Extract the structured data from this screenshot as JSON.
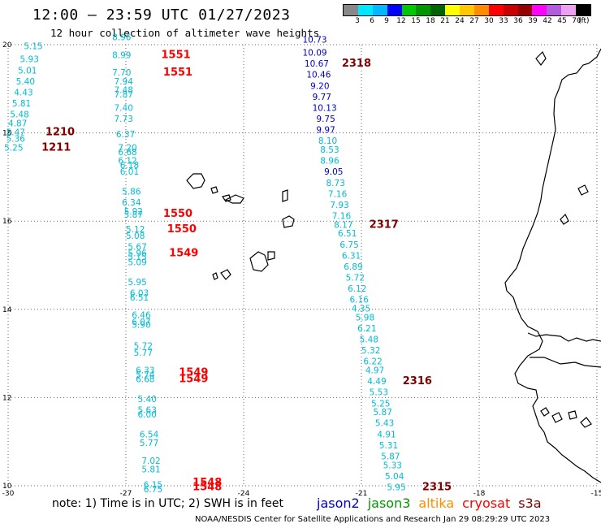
{
  "header": {
    "title": "12:00 – 23:59 UTC 01/27/2023",
    "subtitle": "12 hour collection of altimeter wave heights"
  },
  "legend": {
    "colors": [
      "#888888",
      "#00e8ff",
      "#00b8ff",
      "#0000ff",
      "#00c800",
      "#009600",
      "#006400",
      "#ffff00",
      "#ffc800",
      "#ff8c00",
      "#ff0000",
      "#c80000",
      "#960000",
      "#ff00ff",
      "#b45adc",
      "#f0a0f0",
      "#000000"
    ],
    "labels": [
      "3",
      "6",
      "9",
      "12",
      "15",
      "18",
      "21",
      "24",
      "27",
      "30",
      "33",
      "36",
      "39",
      "42",
      "45",
      "70"
    ],
    "unit": "(ft)"
  },
  "axes": {
    "x_ticks": [
      "-30",
      "-27",
      "-24",
      "-21",
      "-18",
      "-15"
    ],
    "y_ticks": [
      "20",
      "18",
      "16",
      "14",
      "12",
      "10"
    ]
  },
  "satellite_colors": {
    "jason2": "#0000cc",
    "jason3": "#009600",
    "altika": "#ff8c00",
    "cryosat": "#ff0000",
    "s3a": "#800000",
    "track_cyan": "#00bcd4",
    "track_red": "#ff0000",
    "track_maroon": "#800000"
  },
  "map_data": {
    "wave_heights": [
      {
        "lon": -29.6,
        "lat": 19.9,
        "value": "5.15",
        "color": "cyan"
      },
      {
        "lon": -29.7,
        "lat": 19.6,
        "value": "5.93",
        "color": "cyan"
      },
      {
        "lon": -29.75,
        "lat": 19.35,
        "value": "5.01",
        "color": "cyan"
      },
      {
        "lon": -29.8,
        "lat": 19.1,
        "value": "5.40",
        "color": "cyan"
      },
      {
        "lon": -29.85,
        "lat": 18.85,
        "value": "4.43",
        "color": "cyan"
      },
      {
        "lon": -29.9,
        "lat": 18.6,
        "value": "5.81",
        "color": "cyan"
      },
      {
        "lon": -29.95,
        "lat": 18.35,
        "value": "5.48",
        "color": "cyan"
      },
      {
        "lon": -30.0,
        "lat": 18.15,
        "value": "4.87",
        "color": "cyan"
      },
      {
        "lon": -30.05,
        "lat": 17.95,
        "value": "5.47",
        "color": "cyan"
      },
      {
        "lon": -30.05,
        "lat": 17.8,
        "value": "5.36",
        "color": "cyan"
      },
      {
        "lon": -30.1,
        "lat": 17.6,
        "value": "5.25",
        "color": "cyan"
      },
      {
        "lon": -29.05,
        "lat": 17.95,
        "value": "1210",
        "color": "maroon",
        "label": true
      },
      {
        "lon": -29.15,
        "lat": 17.6,
        "value": "1211",
        "color": "maroon",
        "label": true
      },
      {
        "lon": -27.35,
        "lat": 20.1,
        "value": "8.96",
        "color": "cyan"
      },
      {
        "lon": -27.35,
        "lat": 19.7,
        "value": "8.99",
        "color": "cyan"
      },
      {
        "lon": -26.1,
        "lat": 19.7,
        "value": "1551",
        "color": "red",
        "label": true
      },
      {
        "lon": -27.35,
        "lat": 19.3,
        "value": "7.70",
        "color": "cyan"
      },
      {
        "lon": -26.05,
        "lat": 19.3,
        "value": "1551",
        "color": "red",
        "label": true
      },
      {
        "lon": -27.3,
        "lat": 19.1,
        "value": "7.94",
        "color": "cyan"
      },
      {
        "lon": -27.3,
        "lat": 18.9,
        "value": "7.48",
        "color": "cyan"
      },
      {
        "lon": -27.3,
        "lat": 18.8,
        "value": "7.87",
        "color": "cyan"
      },
      {
        "lon": -27.3,
        "lat": 18.5,
        "value": "7.40",
        "color": "cyan"
      },
      {
        "lon": -27.3,
        "lat": 18.25,
        "value": "7.73",
        "color": "cyan"
      },
      {
        "lon": -27.25,
        "lat": 17.9,
        "value": "6.37",
        "color": "cyan"
      },
      {
        "lon": -27.2,
        "lat": 17.6,
        "value": "7.20",
        "color": "cyan"
      },
      {
        "lon": -27.2,
        "lat": 17.5,
        "value": "6.68",
        "color": "cyan"
      },
      {
        "lon": -27.2,
        "lat": 17.3,
        "value": "6.12",
        "color": "cyan"
      },
      {
        "lon": -27.15,
        "lat": 17.2,
        "value": "6.18",
        "color": "cyan"
      },
      {
        "lon": -27.15,
        "lat": 17.05,
        "value": "6.01",
        "color": "cyan"
      },
      {
        "lon": -27.1,
        "lat": 16.6,
        "value": "5.86",
        "color": "cyan"
      },
      {
        "lon": -27.1,
        "lat": 16.35,
        "value": "6.34",
        "color": "cyan"
      },
      {
        "lon": -27.05,
        "lat": 16.15,
        "value": "5.92",
        "color": "cyan"
      },
      {
        "lon": -27.05,
        "lat": 16.08,
        "value": "5.87",
        "color": "cyan"
      },
      {
        "lon": -26.05,
        "lat": 16.1,
        "value": "1550",
        "color": "red",
        "label": true
      },
      {
        "lon": -27.0,
        "lat": 15.75,
        "value": "5.12",
        "color": "cyan"
      },
      {
        "lon": -27.0,
        "lat": 15.6,
        "value": "5.08",
        "color": "cyan"
      },
      {
        "lon": -25.95,
        "lat": 15.75,
        "value": "1550",
        "color": "red",
        "label": true
      },
      {
        "lon": -26.95,
        "lat": 15.35,
        "value": "5.67",
        "color": "cyan"
      },
      {
        "lon": -26.95,
        "lat": 15.2,
        "value": "5.96",
        "color": "cyan"
      },
      {
        "lon": -26.95,
        "lat": 15.12,
        "value": "5.15",
        "color": "cyan"
      },
      {
        "lon": -26.95,
        "lat": 15.0,
        "value": "5.09",
        "color": "cyan"
      },
      {
        "lon": -25.9,
        "lat": 15.2,
        "value": "1549",
        "color": "red",
        "label": true
      },
      {
        "lon": -26.95,
        "lat": 14.55,
        "value": "5.95",
        "color": "cyan"
      },
      {
        "lon": -26.9,
        "lat": 14.3,
        "value": "6.03",
        "color": "cyan"
      },
      {
        "lon": -26.9,
        "lat": 14.2,
        "value": "6.51",
        "color": "cyan"
      },
      {
        "lon": -26.85,
        "lat": 13.8,
        "value": "6.46",
        "color": "cyan"
      },
      {
        "lon": -26.85,
        "lat": 13.65,
        "value": "6.07",
        "color": "cyan"
      },
      {
        "lon": -26.85,
        "lat": 13.58,
        "value": "5.90",
        "color": "cyan"
      },
      {
        "lon": -26.8,
        "lat": 13.1,
        "value": "5.72",
        "color": "cyan"
      },
      {
        "lon": -26.8,
        "lat": 12.95,
        "value": "5.77",
        "color": "cyan"
      },
      {
        "lon": -26.75,
        "lat": 12.55,
        "value": "6.33",
        "color": "cyan"
      },
      {
        "lon": -26.75,
        "lat": 12.45,
        "value": "5.74",
        "color": "cyan"
      },
      {
        "lon": -26.75,
        "lat": 12.35,
        "value": "6.68",
        "color": "cyan"
      },
      {
        "lon": -25.65,
        "lat": 12.5,
        "value": "1549",
        "color": "red",
        "label": true
      },
      {
        "lon": -25.65,
        "lat": 12.35,
        "value": "1549",
        "color": "red",
        "label": true
      },
      {
        "lon": -26.7,
        "lat": 11.9,
        "value": "5.40",
        "color": "cyan"
      },
      {
        "lon": -26.7,
        "lat": 11.65,
        "value": "5.63",
        "color": "cyan"
      },
      {
        "lon": -26.7,
        "lat": 11.55,
        "value": "6.00",
        "color": "cyan"
      },
      {
        "lon": -26.65,
        "lat": 11.1,
        "value": "6.54",
        "color": "cyan"
      },
      {
        "lon": -26.65,
        "lat": 10.9,
        "value": "5.77",
        "color": "cyan"
      },
      {
        "lon": -26.6,
        "lat": 10.5,
        "value": "7.02",
        "color": "cyan"
      },
      {
        "lon": -26.6,
        "lat": 10.3,
        "value": "5.81",
        "color": "cyan"
      },
      {
        "lon": -26.55,
        "lat": 9.95,
        "value": "6.15",
        "color": "cyan"
      },
      {
        "lon": -26.55,
        "lat": 9.85,
        "value": "6.75",
        "color": "cyan"
      },
      {
        "lon": -25.3,
        "lat": 10.0,
        "value": "1548",
        "color": "red",
        "label": true
      },
      {
        "lon": -25.3,
        "lat": 9.9,
        "value": "1548",
        "color": "red",
        "label": true
      },
      {
        "lon": -22.5,
        "lat": 20.05,
        "value": "10.73",
        "color": "blue"
      },
      {
        "lon": -22.5,
        "lat": 19.75,
        "value": "10.09",
        "color": "blue"
      },
      {
        "lon": -22.45,
        "lat": 19.5,
        "value": "10.67",
        "color": "blue"
      },
      {
        "lon": -21.5,
        "lat": 19.5,
        "value": "2318",
        "color": "maroon",
        "label": true
      },
      {
        "lon": -22.4,
        "lat": 19.25,
        "value": "10.46",
        "color": "blue"
      },
      {
        "lon": -22.3,
        "lat": 19.0,
        "value": "9.20",
        "color": "blue"
      },
      {
        "lon": -22.25,
        "lat": 18.75,
        "value": "9.77",
        "color": "blue"
      },
      {
        "lon": -22.25,
        "lat": 18.5,
        "value": "10.13",
        "color": "blue"
      },
      {
        "lon": -22.15,
        "lat": 18.25,
        "value": "9.75",
        "color": "blue"
      },
      {
        "lon": -22.15,
        "lat": 18.0,
        "value": "9.97",
        "color": "blue"
      },
      {
        "lon": -22.1,
        "lat": 17.75,
        "value": "8.10",
        "color": "cyan"
      },
      {
        "lon": -22.05,
        "lat": 17.55,
        "value": "8.53",
        "color": "cyan"
      },
      {
        "lon": -22.05,
        "lat": 17.3,
        "value": "8.96",
        "color": "cyan"
      },
      {
        "lon": -21.95,
        "lat": 17.05,
        "value": "9.05",
        "color": "blue"
      },
      {
        "lon": -21.9,
        "lat": 16.8,
        "value": "8.73",
        "color": "cyan"
      },
      {
        "lon": -21.85,
        "lat": 16.55,
        "value": "7.16",
        "color": "cyan"
      },
      {
        "lon": -21.8,
        "lat": 16.3,
        "value": "7.93",
        "color": "cyan"
      },
      {
        "lon": -21.75,
        "lat": 16.05,
        "value": "7.16",
        "color": "cyan"
      },
      {
        "lon": -21.7,
        "lat": 15.85,
        "value": "8.17",
        "color": "cyan"
      },
      {
        "lon": -20.8,
        "lat": 15.85,
        "value": "2317",
        "color": "maroon",
        "label": true
      },
      {
        "lon": -21.6,
        "lat": 15.65,
        "value": "6.51",
        "color": "cyan"
      },
      {
        "lon": -21.55,
        "lat": 15.4,
        "value": "6.75",
        "color": "cyan"
      },
      {
        "lon": -21.5,
        "lat": 15.15,
        "value": "6.31",
        "color": "cyan"
      },
      {
        "lon": -21.45,
        "lat": 14.9,
        "value": "6.89",
        "color": "cyan"
      },
      {
        "lon": -21.4,
        "lat": 14.65,
        "value": "5.72",
        "color": "cyan"
      },
      {
        "lon": -21.35,
        "lat": 14.4,
        "value": "6.12",
        "color": "cyan"
      },
      {
        "lon": -21.3,
        "lat": 14.15,
        "value": "6.16",
        "color": "cyan"
      },
      {
        "lon": -21.25,
        "lat": 13.95,
        "value": "4.35",
        "color": "cyan"
      },
      {
        "lon": -21.15,
        "lat": 13.75,
        "value": "5.98",
        "color": "cyan"
      },
      {
        "lon": -21.1,
        "lat": 13.5,
        "value": "6.21",
        "color": "cyan"
      },
      {
        "lon": -21.05,
        "lat": 13.25,
        "value": "5.48",
        "color": "cyan"
      },
      {
        "lon": -21.0,
        "lat": 13.0,
        "value": "5.32",
        "color": "cyan"
      },
      {
        "lon": -20.95,
        "lat": 12.75,
        "value": "6.22",
        "color": "cyan"
      },
      {
        "lon": -20.9,
        "lat": 12.55,
        "value": "4.97",
        "color": "cyan"
      },
      {
        "lon": -20.85,
        "lat": 12.3,
        "value": "4.49",
        "color": "cyan"
      },
      {
        "lon": -19.95,
        "lat": 12.3,
        "value": "2316",
        "color": "maroon",
        "label": true
      },
      {
        "lon": -20.8,
        "lat": 12.05,
        "value": "5.53",
        "color": "cyan"
      },
      {
        "lon": -20.75,
        "lat": 11.8,
        "value": "5.25",
        "color": "cyan"
      },
      {
        "lon": -20.7,
        "lat": 11.6,
        "value": "5.87",
        "color": "cyan"
      },
      {
        "lon": -20.65,
        "lat": 11.35,
        "value": "5.43",
        "color": "cyan"
      },
      {
        "lon": -20.6,
        "lat": 11.1,
        "value": "4.91",
        "color": "cyan"
      },
      {
        "lon": -20.55,
        "lat": 10.85,
        "value": "5.31",
        "color": "cyan"
      },
      {
        "lon": -20.5,
        "lat": 10.6,
        "value": "5.87",
        "color": "cyan"
      },
      {
        "lon": -20.45,
        "lat": 10.4,
        "value": "5.33",
        "color": "cyan"
      },
      {
        "lon": -20.4,
        "lat": 10.15,
        "value": "5.04",
        "color": "cyan"
      },
      {
        "lon": -20.35,
        "lat": 9.9,
        "value": "5.95",
        "color": "cyan"
      },
      {
        "lon": -19.45,
        "lat": 9.9,
        "value": "2315",
        "color": "maroon",
        "label": true
      }
    ]
  },
  "footer": {
    "note": "note:  1) Time is in UTC;  2) SWH is in feet",
    "satellites": [
      "jason2",
      "jason3",
      "altika",
      "cryosat",
      "s3a"
    ],
    "credit": "NOAA/NESDIS Center for Satellite Applications and Research    Jan 29 08:29:29 UTC 2023"
  }
}
